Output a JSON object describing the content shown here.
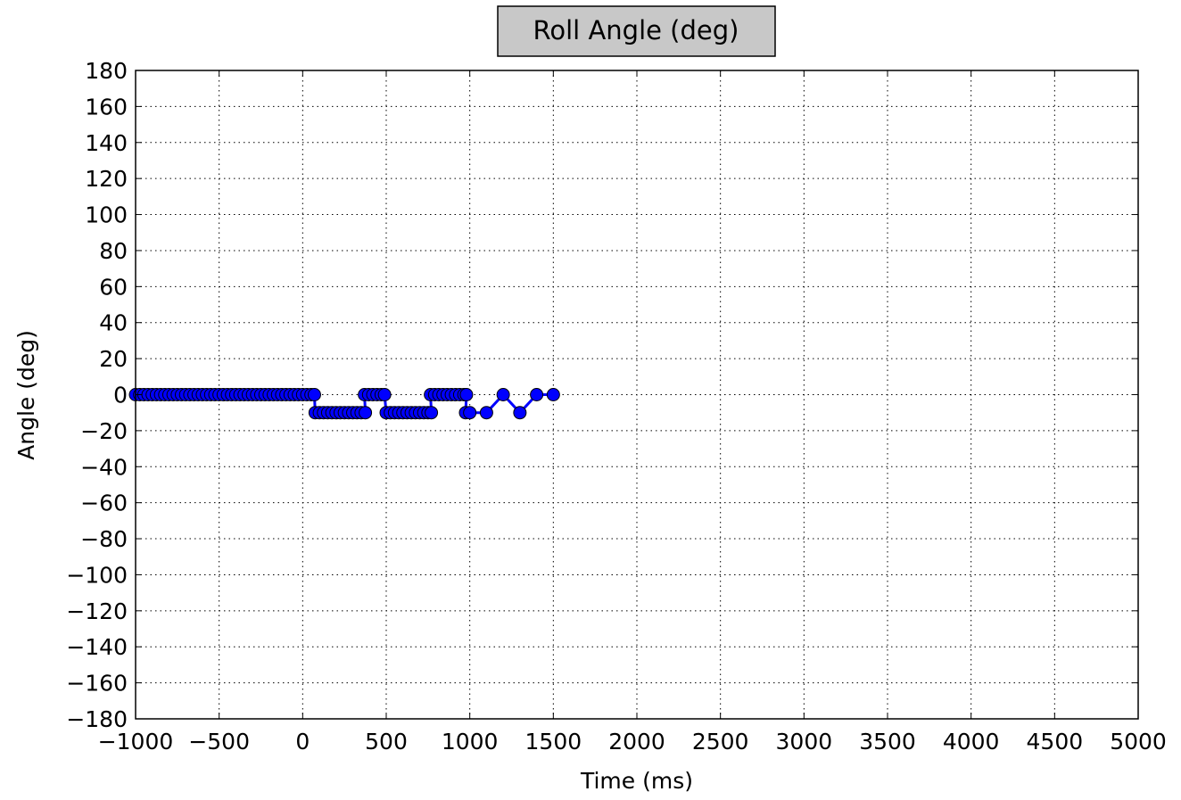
{
  "chart_data": {
    "type": "line",
    "title": "Roll Angle (deg)",
    "xlabel": "Time (ms)",
    "ylabel": "Angle (deg)",
    "xlim": [
      -1000,
      5000
    ],
    "ylim": [
      -180,
      180
    ],
    "xticks": [
      -1000,
      -500,
      0,
      500,
      1000,
      1500,
      2000,
      2500,
      3000,
      3500,
      4000,
      4500,
      5000
    ],
    "yticks": [
      -180,
      -160,
      -140,
      -120,
      -100,
      -80,
      -60,
      -40,
      -20,
      0,
      20,
      40,
      60,
      80,
      100,
      120,
      140,
      160,
      180
    ],
    "xtick_labels": [
      "−1000",
      "−500",
      "0",
      "500",
      "1000",
      "1500",
      "2000",
      "2500",
      "3000",
      "3500",
      "4000",
      "4500",
      "5000"
    ],
    "ytick_labels": [
      "−180",
      "−160",
      "−140",
      "−120",
      "−100",
      "−80",
      "−60",
      "−40",
      "−20",
      "0",
      "20",
      "40",
      "60",
      "80",
      "100",
      "120",
      "140",
      "160",
      "180"
    ],
    "grid": true,
    "line_color": "#0000ff",
    "marker_color": "#0000ff",
    "series": [
      {
        "x": [
          -1000,
          -975,
          -950,
          -925,
          -900,
          -875,
          -850,
          -825,
          -800,
          -775,
          -750,
          -725,
          -700,
          -675,
          -650,
          -625,
          -600,
          -575,
          -550,
          -525,
          -500,
          -475,
          -450,
          -425,
          -400,
          -375,
          -350,
          -325,
          -300,
          -275,
          -250,
          -225,
          -200,
          -175,
          -150,
          -125,
          -100,
          -75,
          -50,
          -25,
          0,
          25,
          50,
          70,
          75,
          100,
          125,
          150,
          175,
          200,
          225,
          250,
          275,
          300,
          325,
          350,
          375,
          370,
          395,
          420,
          445,
          470,
          490,
          500,
          525,
          550,
          575,
          600,
          625,
          650,
          675,
          700,
          725,
          750,
          770,
          765,
          790,
          815,
          840,
          865,
          890,
          915,
          940,
          965,
          980,
          975,
          1000,
          1100,
          1200,
          1300,
          1400,
          1500
        ],
        "y": [
          0,
          0,
          0,
          0,
          0,
          0,
          0,
          0,
          0,
          0,
          0,
          0,
          0,
          0,
          0,
          0,
          0,
          0,
          0,
          0,
          0,
          0,
          0,
          0,
          0,
          0,
          0,
          0,
          0,
          0,
          0,
          0,
          0,
          0,
          0,
          0,
          0,
          0,
          0,
          0,
          0,
          0,
          0,
          0,
          -10,
          -10,
          -10,
          -10,
          -10,
          -10,
          -10,
          -10,
          -10,
          -10,
          -10,
          -10,
          -10,
          0,
          0,
          0,
          0,
          0,
          0,
          -10,
          -10,
          -10,
          -10,
          -10,
          -10,
          -10,
          -10,
          -10,
          -10,
          -10,
          -10,
          0,
          0,
          0,
          0,
          0,
          0,
          0,
          0,
          0,
          0,
          -10,
          -10,
          -10,
          0,
          -10,
          0,
          0
        ]
      }
    ]
  }
}
